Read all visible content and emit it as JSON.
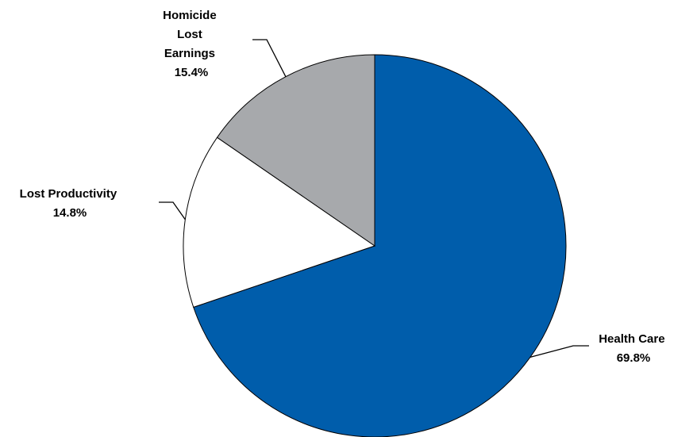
{
  "chart_data": {
    "type": "pie",
    "title": "",
    "slices": [
      {
        "label_lines": [
          "Health Care"
        ],
        "value": 69.8,
        "value_label": "69.8%",
        "color": "#005dab"
      },
      {
        "label_lines": [
          "Lost Productivity"
        ],
        "value": 14.8,
        "value_label": "14.8%",
        "color": "#ffffff"
      },
      {
        "label_lines": [
          "Homicide",
          "Lost",
          "Earnings"
        ],
        "value": 15.4,
        "value_label": "15.4%",
        "color": "#a7a9ac"
      }
    ],
    "start_angle_deg": 0,
    "direction": "clockwise",
    "outline_color": "#000000"
  }
}
